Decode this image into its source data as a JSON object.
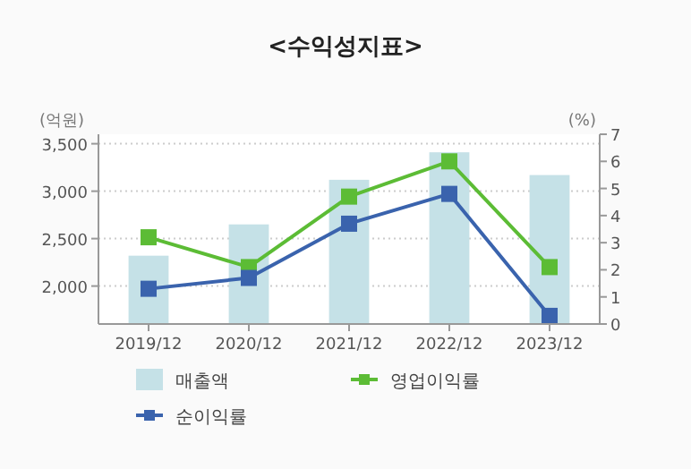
{
  "chart_data": {
    "type": "bar",
    "title": "<수익성지표>",
    "ylabel": "(억원)",
    "y2label": "(%)",
    "categories": [
      "2019/12",
      "2020/12",
      "2021/12",
      "2022/12",
      "2023/12"
    ],
    "series": [
      {
        "name": "매출액",
        "color": "#c5e1e7",
        "values": [
          2320,
          2650,
          3120,
          3410,
          3170
        ]
      },
      {
        "name": "영업이익률",
        "type": "line",
        "axis": "y2",
        "color": "#5cbc35",
        "values": [
          3.2,
          2.1,
          4.7,
          6.0,
          2.1
        ]
      },
      {
        "name": "순이익률",
        "type": "line",
        "axis": "y2",
        "color": "#3a63ad",
        "values": [
          1.3,
          1.7,
          3.7,
          4.8,
          0.3
        ]
      }
    ],
    "ylim": [
      1600,
      3600
    ],
    "yticks": [
      {
        "value": 2000,
        "label": "2,000"
      },
      {
        "value": 2500,
        "label": "2,500"
      },
      {
        "value": 3000,
        "label": "3,000"
      },
      {
        "value": 3500,
        "label": "3,500"
      }
    ],
    "y2lim": [
      0,
      7
    ],
    "y2ticks": [
      0,
      1,
      2,
      3,
      4,
      5,
      6,
      7
    ],
    "grid": "y",
    "marker": "square",
    "legend": "bottom"
  }
}
